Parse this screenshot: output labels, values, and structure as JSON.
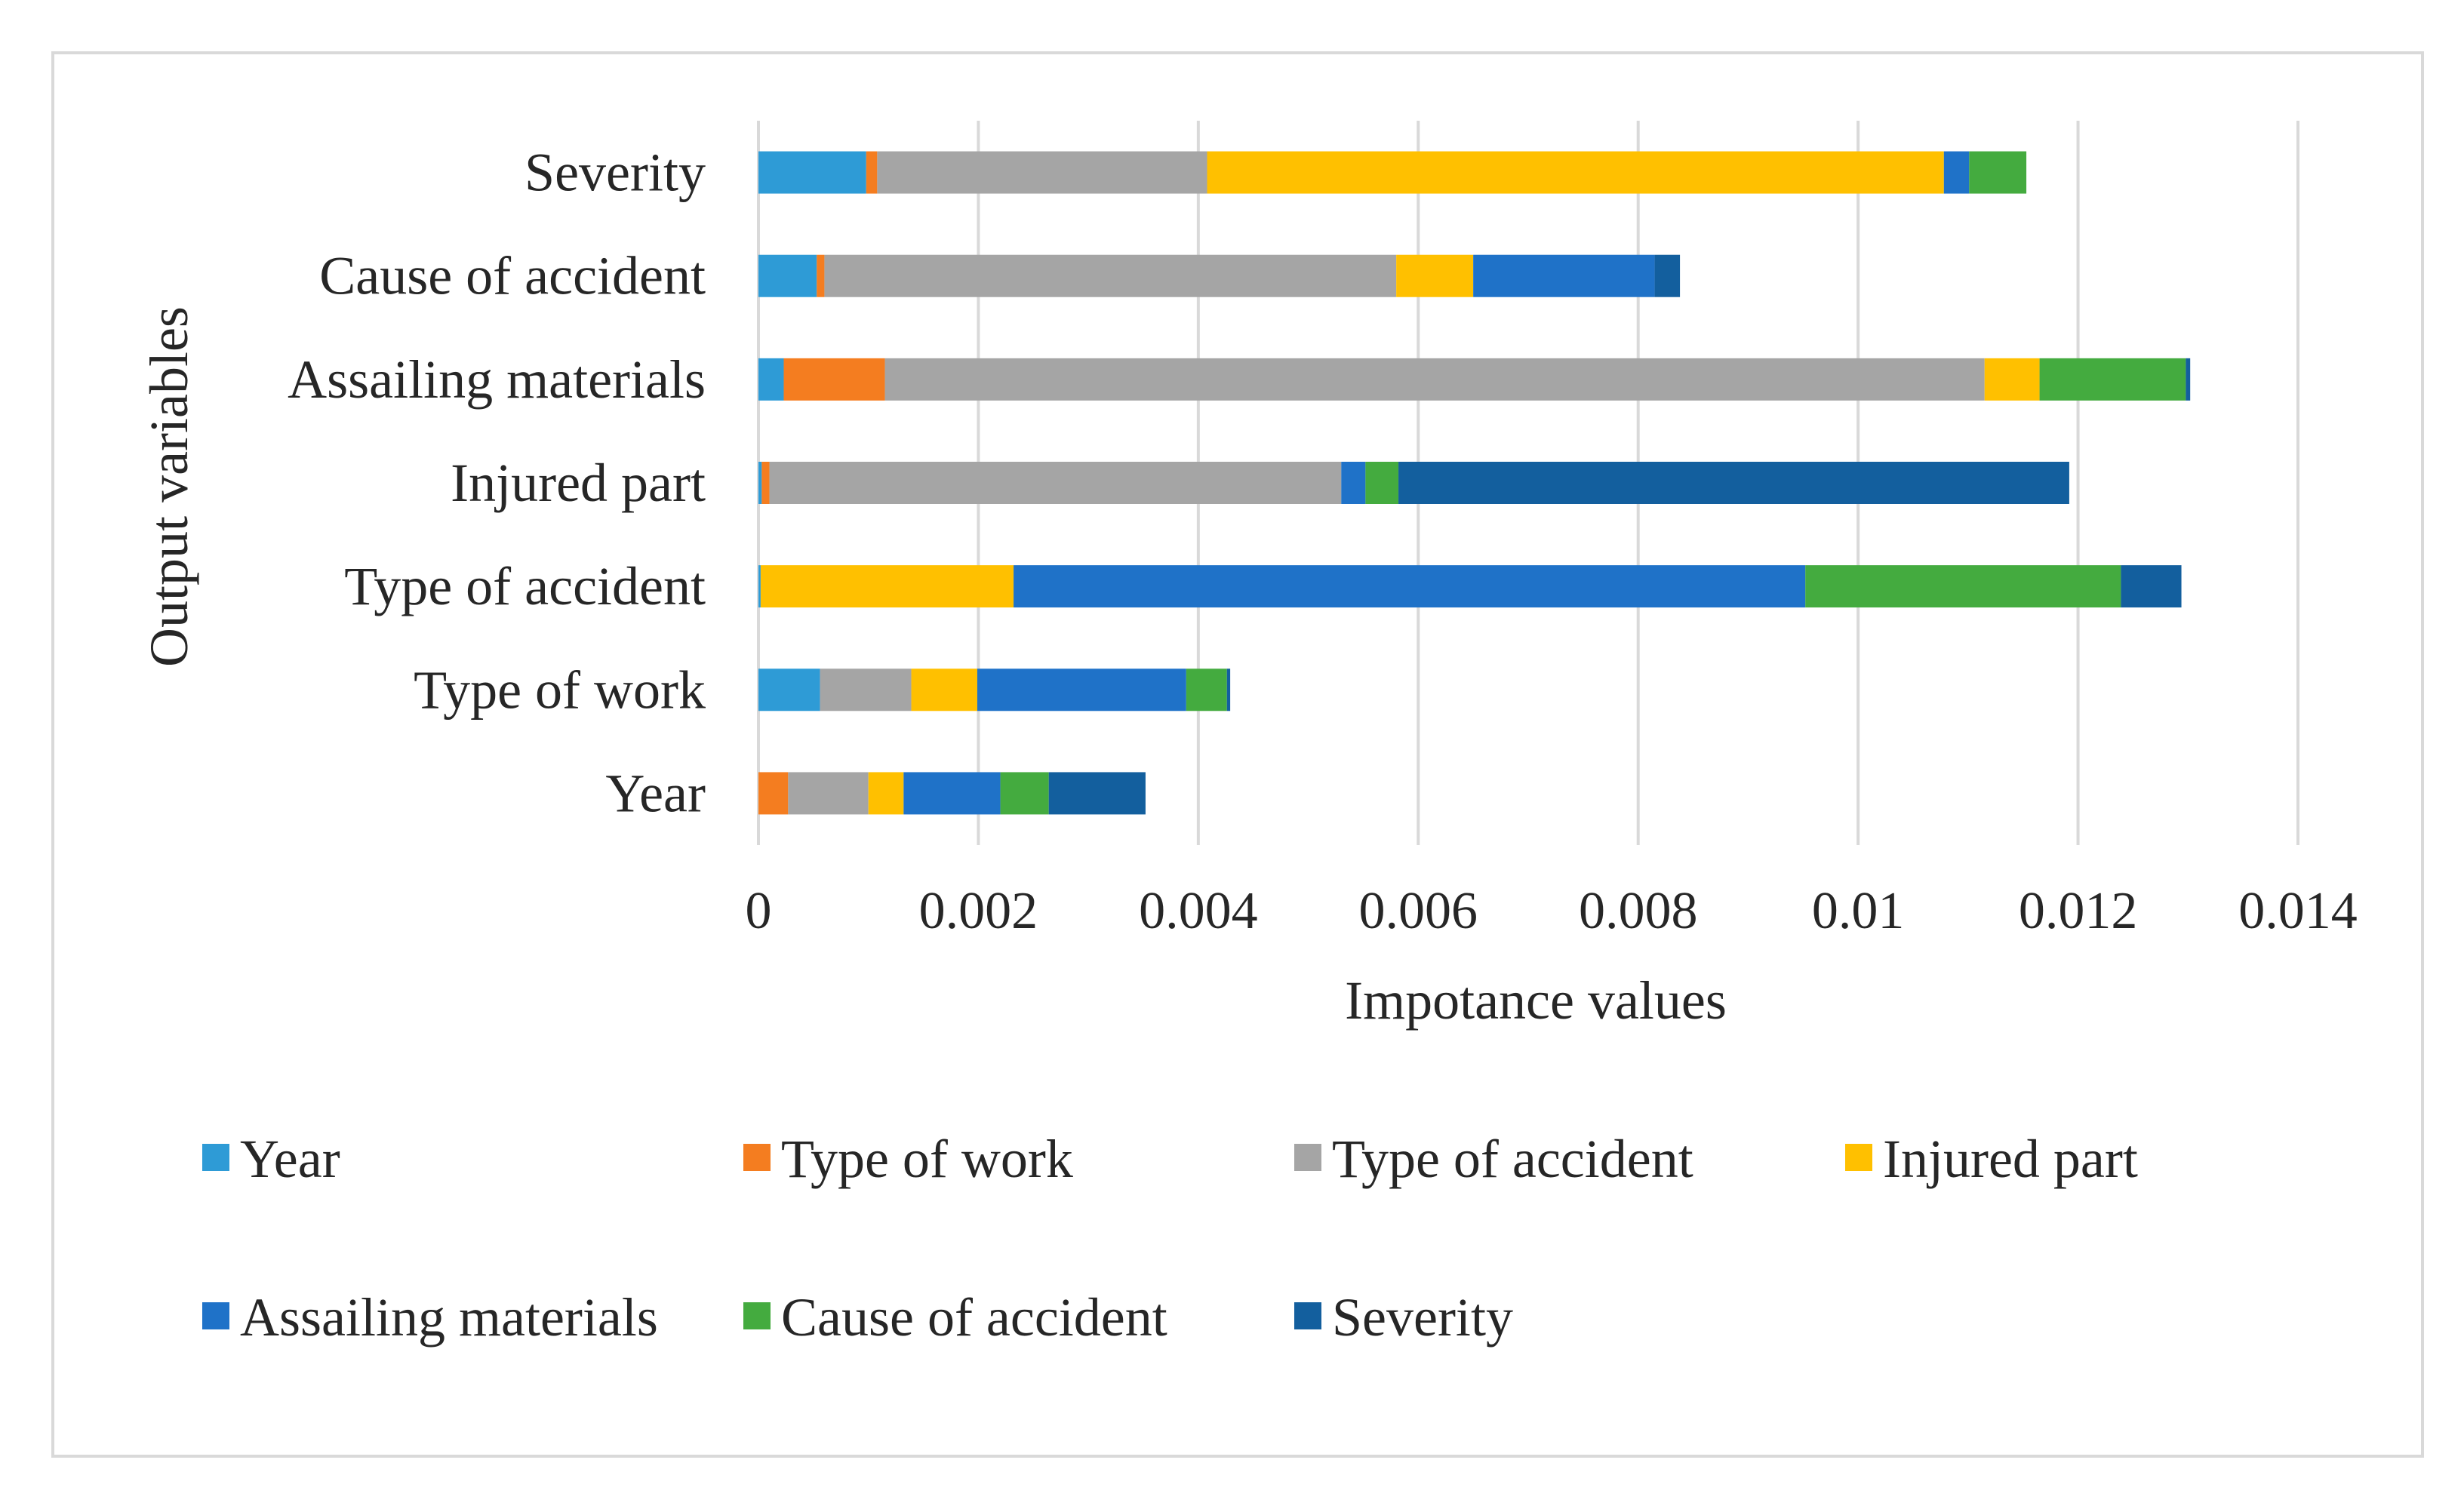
{
  "chart_data": {
    "type": "bar",
    "orientation": "horizontal",
    "stacked": true,
    "title": "",
    "xlabel": "Impotance values",
    "ylabel": "Output variables",
    "xlim": [
      0,
      0.014
    ],
    "x_ticks": [
      0,
      0.002,
      0.004,
      0.006,
      0.008,
      0.01,
      0.012,
      0.014
    ],
    "x_tick_labels": [
      "0",
      "0.002",
      "0.004",
      "0.006",
      "0.008",
      "0.01",
      "0.012",
      "0.014"
    ],
    "grid": "vertical",
    "legend_position": "bottom",
    "categories": [
      "Severity",
      "Cause of accident",
      "Assailing materials",
      "Injured part",
      "Type of accident",
      "Type of work",
      "Year"
    ],
    "series": [
      {
        "name": "Year",
        "color": "#2E9BD6",
        "values": [
          0.00098,
          0.00053,
          0.00023,
          3e-05,
          2e-05,
          0.00056,
          0.0
        ]
      },
      {
        "name": "Type of work",
        "color": "#F47D20",
        "values": [
          0.0001,
          7e-05,
          0.00092,
          7e-05,
          0.0,
          0.0,
          0.00027
        ]
      },
      {
        "name": "Type of accident",
        "color": "#A5A5A5",
        "values": [
          0.003,
          0.0052,
          0.01,
          0.0052,
          0.0,
          0.00083,
          0.00073
        ]
      },
      {
        "name": "Injured part",
        "color": "#FFC000",
        "values": [
          0.0067,
          0.0007,
          0.0005,
          0.0,
          0.0023,
          0.0006,
          0.00032
        ]
      },
      {
        "name": "Assailing materials",
        "color": "#1F72C8",
        "values": [
          0.00023,
          0.00165,
          0.0,
          0.00022,
          0.0072,
          0.0019,
          0.00088
        ]
      },
      {
        "name": "Cause of accident",
        "color": "#44AB3F",
        "values": [
          0.00052,
          0.0,
          0.00133,
          0.0003,
          0.00287,
          0.00037,
          0.00044
        ]
      },
      {
        "name": "Severity",
        "color": "#135F9E",
        "values": [
          0.0,
          0.00023,
          4e-05,
          0.0061,
          0.00055,
          3e-05,
          0.00088
        ]
      }
    ]
  }
}
